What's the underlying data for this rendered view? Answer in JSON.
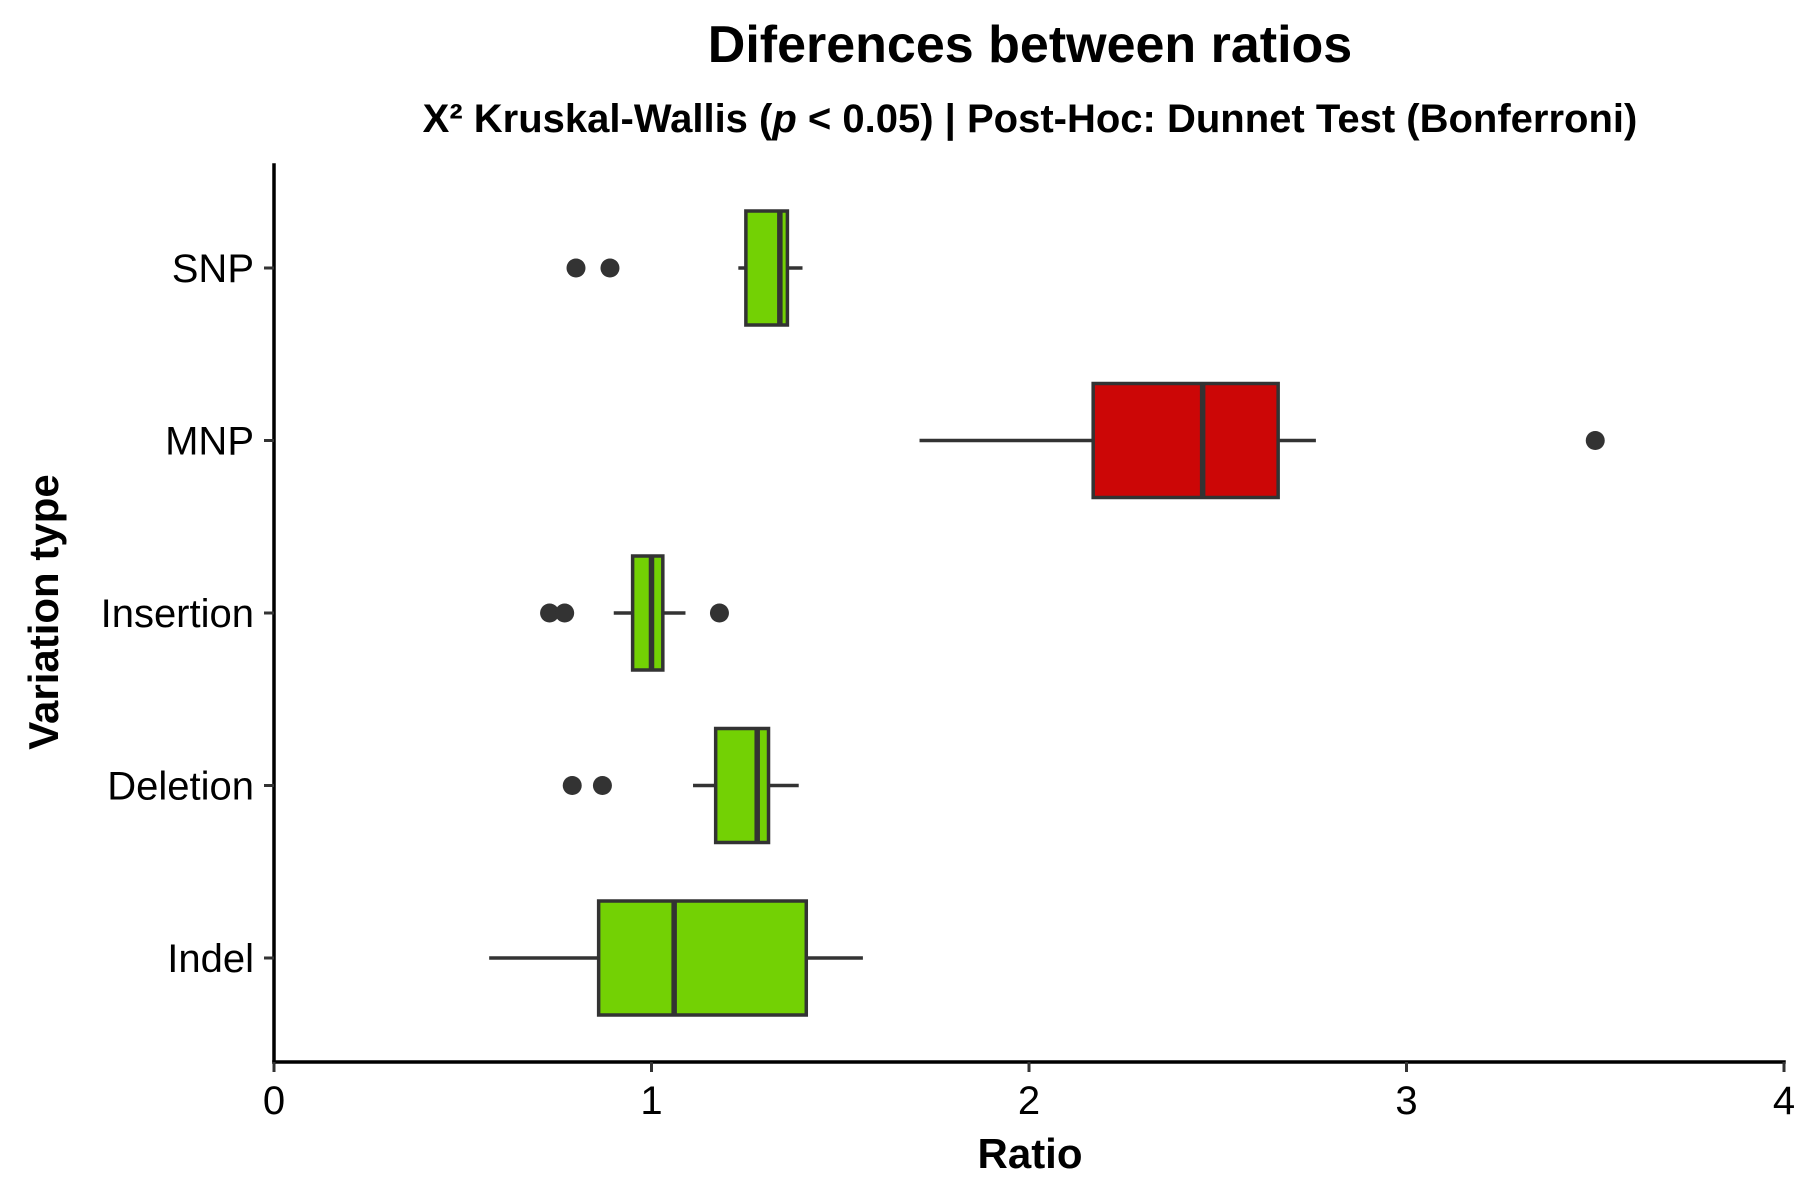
{
  "chart_data": {
    "type": "boxplot",
    "orientation": "horizontal",
    "title": "Diferences between ratios",
    "subtitle": {
      "prefix": "X² Kruskal-Wallis (",
      "italic": "p",
      "suffix": " < 0.05) | Post-Hoc: Dunnet Test (Bonferroni)"
    },
    "xlabel": "Ratio",
    "ylabel": "Variation type",
    "xlim": [
      0,
      4
    ],
    "xticks": [
      "0",
      "1",
      "2",
      "3",
      "4"
    ],
    "grid": false,
    "categories": [
      "SNP",
      "MNP",
      "Insertion",
      "Deletion",
      "Indel"
    ],
    "boxes": [
      {
        "category": "SNP",
        "whisker_low": 1.23,
        "q1": 1.25,
        "median": 1.34,
        "q3": 1.36,
        "whisker_high": 1.4,
        "outliers": [
          0.8,
          0.89
        ],
        "color": "#73d104"
      },
      {
        "category": "MNP",
        "whisker_low": 1.71,
        "q1": 2.17,
        "median": 2.46,
        "q3": 2.66,
        "whisker_high": 2.76,
        "outliers": [
          3.5
        ],
        "color": "#cc0606"
      },
      {
        "category": "Insertion",
        "whisker_low": 0.9,
        "q1": 0.95,
        "median": 1.0,
        "q3": 1.03,
        "whisker_high": 1.09,
        "outliers": [
          0.73,
          0.77,
          1.18
        ],
        "color": "#73d104"
      },
      {
        "category": "Deletion",
        "whisker_low": 1.11,
        "q1": 1.17,
        "median": 1.28,
        "q3": 1.31,
        "whisker_high": 1.39,
        "outliers": [
          0.79,
          0.87
        ],
        "color": "#73d104"
      },
      {
        "category": "Indel",
        "whisker_low": 0.57,
        "q1": 0.86,
        "median": 1.06,
        "q3": 1.41,
        "whisker_high": 1.56,
        "outliers": [],
        "color": "#73d104"
      }
    ],
    "outline_color": "#333333",
    "legend": "none"
  }
}
